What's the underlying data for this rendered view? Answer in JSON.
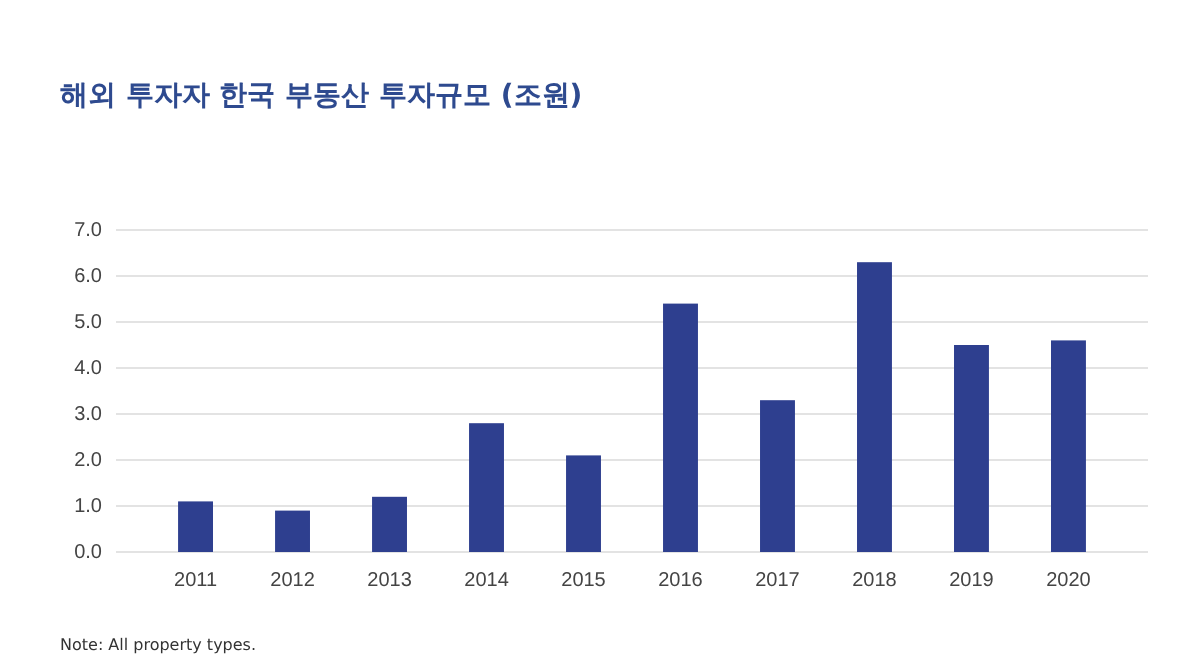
{
  "chart_data": {
    "type": "bar",
    "title": "해외 투자자 한국 부동산 투자규모 (조원)",
    "categories": [
      "2011",
      "2012",
      "2013",
      "2014",
      "2015",
      "2016",
      "2017",
      "2018",
      "2019",
      "2020"
    ],
    "values": [
      1.1,
      0.9,
      1.2,
      2.8,
      2.1,
      5.4,
      3.3,
      6.3,
      4.5,
      4.6
    ],
    "color": "#2e3f8f",
    "ylim": [
      0,
      7
    ],
    "yticks": [
      {
        "value": 0,
        "label": "0.0"
      },
      {
        "value": 1,
        "label": "1.0"
      },
      {
        "value": 2,
        "label": "2.0"
      },
      {
        "value": 3,
        "label": "3.0"
      },
      {
        "value": 4,
        "label": "4.0"
      },
      {
        "value": 5,
        "label": "5.0"
      },
      {
        "value": 6,
        "label": "6.0"
      },
      {
        "value": 7,
        "label": "7.0"
      }
    ],
    "grid": "y",
    "annotations": [
      "Note: All property types."
    ]
  }
}
